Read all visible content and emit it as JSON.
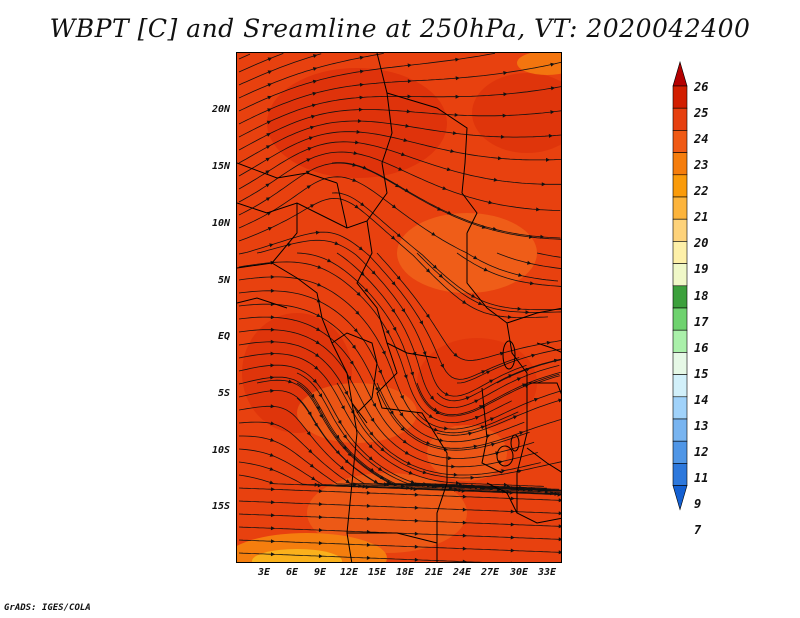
{
  "title": "WBPT [C] and Sreamline at 250hPa, VT: 2020042400",
  "footer": "GrADS: IGES/COLA",
  "map": {
    "lat_labels": [
      "20N",
      "15N",
      "10N",
      "5N",
      "EQ",
      "5S",
      "10S",
      "15S"
    ],
    "lon_labels": [
      "3E",
      "6E",
      "9E",
      "12E",
      "15E",
      "18E",
      "21E",
      "24E",
      "27E",
      "30E",
      "33E"
    ]
  },
  "colorbar": {
    "labels": [
      "26",
      "25",
      "24",
      "23",
      "22",
      "21",
      "20",
      "19",
      "18",
      "17",
      "16",
      "15",
      "14",
      "13",
      "12",
      "11",
      "9",
      "7"
    ],
    "colors": {
      "c1": "#b40000",
      "c2": "#d21e00",
      "c3": "#e6400f",
      "c4": "#f05a14",
      "c5": "#f57d0c",
      "c6": "#fa9b0a",
      "c7": "#fcb43c",
      "c8": "#fdd27a",
      "c9": "#fef0a8",
      "c10": "#f0f8c8",
      "c11": "#3ca03c",
      "c12": "#6ed26e",
      "c13": "#aaf0aa",
      "c14": "#e6f8e6",
      "c15": "#d2f0fa",
      "c16": "#a0d2fa",
      "c17": "#78b4f0",
      "c18": "#5096e6",
      "c19": "#2d78dc",
      "c20": "#1460d2"
    }
  }
}
